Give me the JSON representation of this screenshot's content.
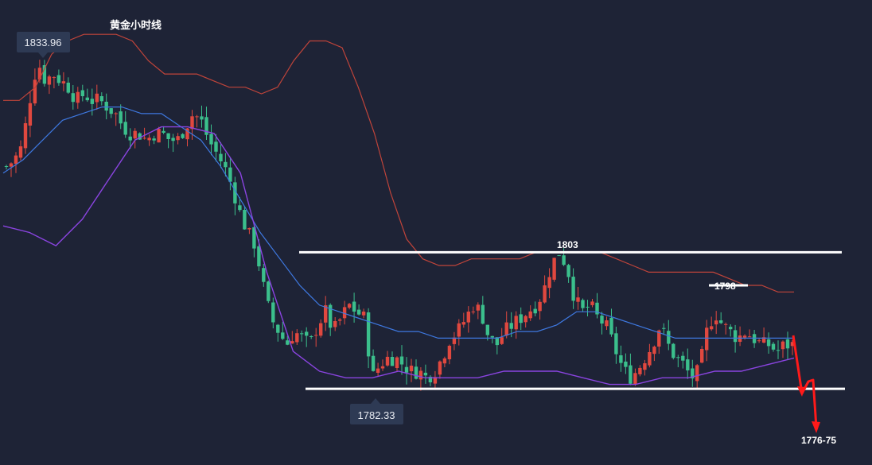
{
  "chart_data": {
    "type": "candlestick",
    "title": "黄金小时线",
    "ylim": [
      1772,
      1840
    ],
    "colors": {
      "background": "#1e2336",
      "up": "#e0483f",
      "down": "#3bbf8c",
      "boll_upper": "#c0443a",
      "boll_middle": "#3e78e0",
      "boll_lower": "#8a44e0",
      "level_line": "#ffffff",
      "projection": "#ff1a1a",
      "tag_bg": "#2e3a54"
    },
    "annotations": {
      "high_tag": "1833.96",
      "low_tag": "1782.33",
      "resistance": {
        "label": "1803",
        "value": 1803
      },
      "pivot": {
        "label": "1798",
        "value": 1798
      },
      "support": {
        "value": 1782.33
      },
      "target_label": "1776-75"
    },
    "close_path": [
      1816,
      1817,
      1819,
      1826,
      1832,
      1829,
      1830,
      1829,
      1828,
      1826,
      1827,
      1826,
      1826,
      1825,
      1824,
      1822,
      1821,
      1821,
      1820,
      1821,
      1821,
      1820,
      1820,
      1822,
      1824,
      1823,
      1820,
      1818,
      1816,
      1813,
      1809,
      1806,
      1804,
      1798,
      1793,
      1791,
      1789,
      1791,
      1790,
      1789,
      1792,
      1794,
      1791,
      1793,
      1795,
      1794,
      1793,
      1784,
      1786,
      1787,
      1787,
      1786,
      1785,
      1785,
      1784,
      1785,
      1787,
      1790,
      1791,
      1793,
      1795,
      1794,
      1790,
      1789,
      1791,
      1792,
      1793,
      1794,
      1795,
      1797,
      1801,
      1803,
      1801,
      1796,
      1794,
      1795,
      1793,
      1792,
      1789,
      1786,
      1784,
      1785,
      1787,
      1789,
      1792,
      1789,
      1787,
      1786,
      1784,
      1785,
      1791,
      1794,
      1792,
      1791,
      1790,
      1791,
      1790,
      1789,
      1789,
      1788,
      1789,
      1789
    ],
    "boll_upper": [
      1826,
      1826,
      1828,
      1833,
      1835,
      1836,
      1836,
      1836,
      1835,
      1832,
      1830,
      1830,
      1830,
      1829,
      1828,
      1828,
      1827,
      1828,
      1832,
      1835,
      1835,
      1834,
      1828,
      1821,
      1812,
      1805,
      1802,
      1801,
      1801,
      1802,
      1802,
      1802,
      1802,
      1803,
      1803,
      1803,
      1803,
      1803,
      1802,
      1801,
      1800,
      1800,
      1800,
      1800,
      1800,
      1799,
      1798,
      1798,
      1797,
      1797
    ],
    "boll_middle": [
      1815,
      1817,
      1820,
      1823,
      1824,
      1825,
      1825,
      1824,
      1824,
      1822,
      1820,
      1816,
      1811,
      1806,
      1802,
      1798,
      1795,
      1794,
      1793,
      1792,
      1791,
      1791,
      1790,
      1790,
      1790,
      1790,
      1791,
      1791,
      1792,
      1794,
      1794,
      1793,
      1792,
      1791,
      1790,
      1790,
      1790,
      1790,
      1790,
      1790,
      1790
    ],
    "boll_lower": [
      1807,
      1806,
      1804,
      1808,
      1814,
      1820,
      1822,
      1822,
      1821,
      1815,
      1800,
      1788,
      1785,
      1784,
      1784,
      1785,
      1784,
      1784,
      1784,
      1785,
      1785,
      1785,
      1784,
      1783,
      1783,
      1784,
      1784,
      1785,
      1785,
      1786,
      1787
    ]
  }
}
